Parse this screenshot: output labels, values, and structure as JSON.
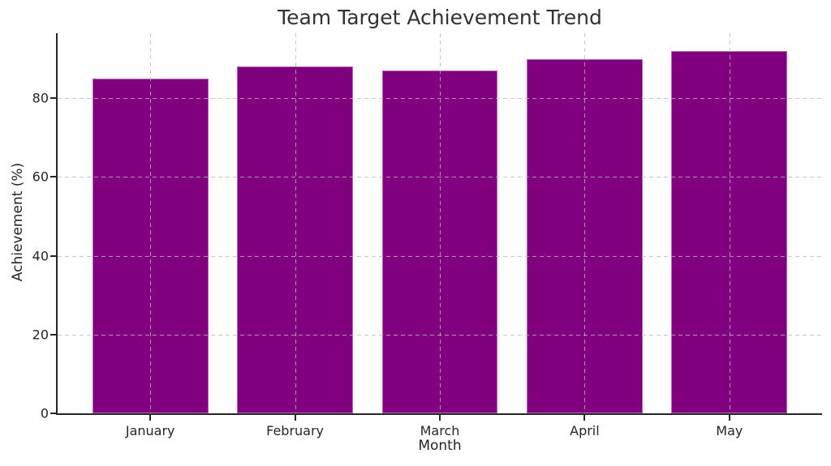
{
  "chart_data": {
    "type": "bar",
    "title": "Team Target Achievement Trend",
    "xlabel": "Month",
    "ylabel": "Achievement (%)",
    "categories": [
      "January",
      "February",
      "March",
      "April",
      "May"
    ],
    "values": [
      85,
      88,
      87,
      90,
      92
    ],
    "yticks": [
      0,
      20,
      40,
      60,
      80
    ],
    "ylim": [
      0,
      96.5
    ],
    "bar_color": "#800080",
    "bar_edge_color": "rgba(255,255,255,0.4)",
    "grid": "dashed-lightgray-above-bars",
    "gridline_color": "#b9b9b9",
    "spine_color": "#262626",
    "text_color": "#262626",
    "background_color": "#ffffff",
    "legend": "none"
  }
}
